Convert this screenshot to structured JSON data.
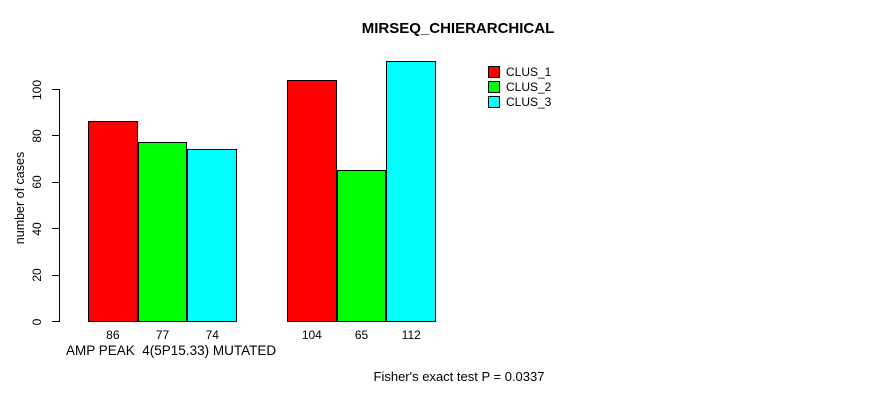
{
  "chart_data": {
    "type": "bar",
    "title": "MIRSEQ_CHIERARCHICAL",
    "ylabel": "number of cases",
    "xlabel": "AMP PEAK  4(5P15.33) MUTATED",
    "annotation": "Fisher's exact test P = 0.0337",
    "series": [
      {
        "name": "CLUS_1",
        "color": "#ff0000"
      },
      {
        "name": "CLUS_2",
        "color": "#00ff00"
      },
      {
        "name": "CLUS_3",
        "color": "#00ffff"
      }
    ],
    "groups": [
      {
        "values": [
          86,
          77,
          74
        ]
      },
      {
        "values": [
          104,
          65,
          112
        ]
      }
    ],
    "yticks": [
      0,
      20,
      40,
      60,
      80,
      100
    ],
    "ylim": [
      0,
      115
    ],
    "grid": false,
    "legend_position": "top-right",
    "bar_value_labels_shown": true,
    "background_color": "#ffffff",
    "axis_color": "#000000",
    "text_color": "#000000"
  }
}
